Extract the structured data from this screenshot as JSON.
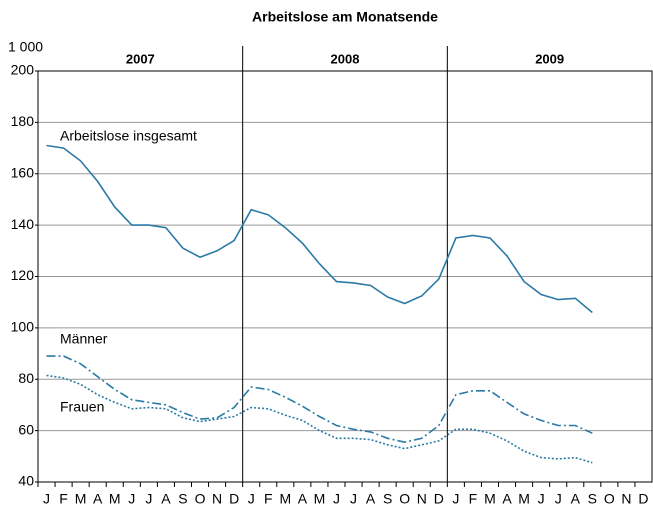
{
  "chart_data": {
    "type": "line",
    "title": "Arbeitslose am Monatsende",
    "unit": "1 000",
    "years": [
      "2007",
      "2008",
      "2009"
    ],
    "categories": [
      "J",
      "F",
      "M",
      "A",
      "M",
      "J",
      "J",
      "A",
      "S",
      "O",
      "N",
      "D",
      "J",
      "F",
      "M",
      "A",
      "M",
      "J",
      "J",
      "A",
      "S",
      "O",
      "N",
      "D",
      "J",
      "F",
      "M",
      "A",
      "M",
      "J",
      "J",
      "A",
      "S",
      "O",
      "N",
      "D"
    ],
    "series": [
      {
        "name": "Arbeitslose insgesamt",
        "color": "#2b7aa6",
        "dash": "solid",
        "values": [
          171,
          170,
          165,
          157,
          147,
          140,
          140,
          139,
          131,
          127.5,
          130,
          134,
          146,
          144,
          139,
          133,
          125,
          118,
          117.5,
          116.5,
          112,
          109.5,
          112.5,
          119,
          135,
          136,
          135,
          128,
          118,
          113,
          111,
          111.5,
          106,
          null,
          null,
          null
        ]
      },
      {
        "name": "Männer",
        "color": "#2b7aa6",
        "dash": "dashdot",
        "values": [
          89,
          89,
          86,
          81,
          76,
          72,
          71,
          70,
          67,
          64.5,
          65,
          69,
          77,
          76,
          73,
          69.5,
          65.5,
          62,
          60.5,
          59.5,
          57,
          55.5,
          57,
          62,
          74,
          75.5,
          75.5,
          71,
          66.5,
          64,
          62,
          62,
          59,
          null,
          null,
          null
        ]
      },
      {
        "name": "Frauen",
        "color": "#2b7aa6",
        "dash": "dotted",
        "values": [
          81.5,
          80.5,
          78,
          74,
          71,
          68.5,
          69,
          68.5,
          65,
          63.5,
          64.5,
          65.5,
          69,
          68.5,
          66,
          64,
          60,
          57,
          57,
          56.5,
          54.5,
          53,
          54.5,
          56,
          60.5,
          60.5,
          59,
          56,
          52,
          49.5,
          49,
          49.5,
          47.5,
          null,
          null,
          null
        ]
      }
    ],
    "ylim": [
      40,
      200
    ],
    "yticks": [
      40,
      60,
      80,
      100,
      120,
      140,
      160,
      180,
      200
    ],
    "grid": true
  }
}
